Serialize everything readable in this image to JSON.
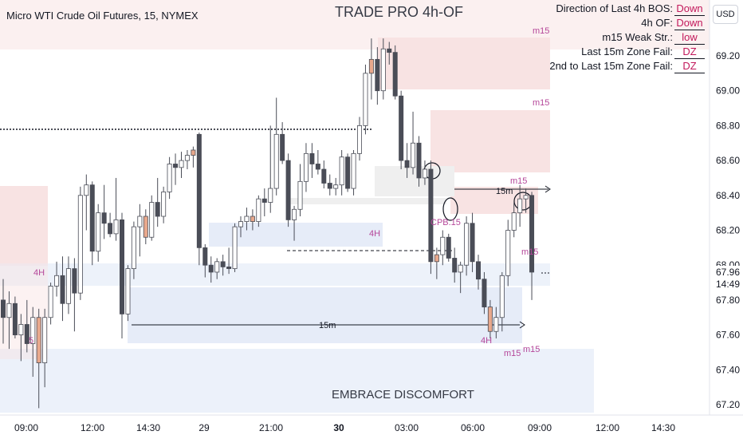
{
  "header": {
    "symbol": "Micro WTI Crude Oil Futures, 15, NYMEX",
    "title": "TRADE PRO 4h-OF",
    "currency": "USD",
    "footer_text": "EMBRACE DISCOMFORT"
  },
  "info_panel": [
    {
      "label": "Direction of Last 4h BOS:",
      "value": "Down"
    },
    {
      "label": "4h OF:",
      "value": "Down"
    },
    {
      "label": "m15 Weak Str.:",
      "value": "low"
    },
    {
      "label": "Last 15m Zone Fail:",
      "value": "DZ"
    },
    {
      "label": "2nd to Last 15m Zone Fail:",
      "value": "DZ"
    }
  ],
  "colors": {
    "bull_body": "#ffffff",
    "bear_body": "#4a4d57",
    "highlight_body": "#e8a88c",
    "wick": "#4a4d57",
    "supply_zone": "#f8e3e3",
    "demand_zone": "#e6ecf8",
    "neutral_zone": "#efefef",
    "label_color": "#b5479a"
  },
  "chart_data": {
    "type": "candlestick",
    "y_ticks": [
      "69.20",
      "69.00",
      "68.80",
      "68.60",
      "68.40",
      "68.20",
      "68.00",
      "67.80",
      "67.60",
      "67.40",
      "67.20"
    ],
    "x_ticks": [
      "09:00",
      "12:00",
      "14:30",
      "29",
      "21:00",
      "30",
      "03:00",
      "06:00",
      "09:00",
      "12:00",
      "14:30"
    ],
    "ylim": [
      67.18,
      69.44
    ],
    "last_price": "67.96",
    "countdown": "14:49",
    "current_price_label": "67.80",
    "zone_labels": [
      "m15",
      "m15",
      "m15",
      "m15",
      "m15",
      "m15",
      "4H",
      "4H",
      "4H",
      "15m",
      "15m",
      "CPB.15",
      "5"
    ],
    "candles": [
      {
        "o": 67.8,
        "h": 67.92,
        "l": 67.55,
        "c": 67.7
      },
      {
        "o": 67.7,
        "h": 67.85,
        "l": 67.52,
        "c": 67.78
      },
      {
        "o": 67.78,
        "h": 67.82,
        "l": 67.58,
        "c": 67.6
      },
      {
        "o": 67.6,
        "h": 67.72,
        "l": 67.45,
        "c": 67.66
      },
      {
        "o": 67.66,
        "h": 67.8,
        "l": 67.5,
        "c": 67.55
      },
      {
        "o": 67.55,
        "h": 67.76,
        "l": 67.36,
        "c": 67.7
      },
      {
        "o": 67.7,
        "h": 67.75,
        "l": 67.18,
        "c": 67.44
      },
      {
        "o": 67.44,
        "h": 67.75,
        "l": 67.3,
        "c": 67.7
      },
      {
        "o": 67.7,
        "h": 67.9,
        "l": 67.66,
        "c": 67.88
      },
      {
        "o": 67.88,
        "h": 68.02,
        "l": 67.82,
        "c": 67.94
      },
      {
        "o": 67.94,
        "h": 68.05,
        "l": 67.68,
        "c": 67.78
      },
      {
        "o": 67.78,
        "h": 68.05,
        "l": 67.72,
        "c": 67.98
      },
      {
        "o": 67.98,
        "h": 68.04,
        "l": 67.62,
        "c": 67.84
      },
      {
        "o": 67.84,
        "h": 68.45,
        "l": 67.8,
        "c": 68.4
      },
      {
        "o": 68.4,
        "h": 68.52,
        "l": 68.2,
        "c": 68.46
      },
      {
        "o": 68.46,
        "h": 68.48,
        "l": 68.0,
        "c": 68.08
      },
      {
        "o": 68.08,
        "h": 68.35,
        "l": 68.02,
        "c": 68.3
      },
      {
        "o": 68.3,
        "h": 68.46,
        "l": 68.15,
        "c": 68.24
      },
      {
        "o": 68.24,
        "h": 68.3,
        "l": 68.16,
        "c": 68.18
      },
      {
        "o": 68.18,
        "h": 68.5,
        "l": 68.14,
        "c": 68.26
      },
      {
        "o": 68.26,
        "h": 68.3,
        "l": 67.58,
        "c": 67.72
      },
      {
        "o": 67.72,
        "h": 68.0,
        "l": 67.68,
        "c": 67.98
      },
      {
        "o": 67.98,
        "h": 68.25,
        "l": 67.92,
        "c": 68.22
      },
      {
        "o": 68.22,
        "h": 68.35,
        "l": 68.05,
        "c": 68.28
      },
      {
        "o": 68.28,
        "h": 68.32,
        "l": 68.12,
        "c": 68.16
      },
      {
        "o": 68.16,
        "h": 68.4,
        "l": 68.14,
        "c": 68.36
      },
      {
        "o": 68.36,
        "h": 68.5,
        "l": 68.22,
        "c": 68.28
      },
      {
        "o": 68.28,
        "h": 68.45,
        "l": 68.24,
        "c": 68.42
      },
      {
        "o": 68.42,
        "h": 68.62,
        "l": 68.38,
        "c": 68.58
      },
      {
        "o": 68.58,
        "h": 68.64,
        "l": 68.46,
        "c": 68.56
      },
      {
        "o": 68.56,
        "h": 68.65,
        "l": 68.5,
        "c": 68.6
      },
      {
        "o": 68.6,
        "h": 68.66,
        "l": 68.55,
        "c": 68.63
      },
      {
        "o": 68.63,
        "h": 68.68,
        "l": 68.56,
        "c": 68.66
      },
      {
        "o": 68.75,
        "h": 68.76,
        "l": 68.0,
        "c": 68.1
      },
      {
        "o": 68.1,
        "h": 68.12,
        "l": 67.93,
        "c": 68.0
      },
      {
        "o": 68.0,
        "h": 68.05,
        "l": 67.9,
        "c": 67.96
      },
      {
        "o": 67.96,
        "h": 68.04,
        "l": 67.92,
        "c": 68.02
      },
      {
        "o": 68.02,
        "h": 68.06,
        "l": 67.94,
        "c": 67.99
      },
      {
        "o": 67.99,
        "h": 68.1,
        "l": 67.95,
        "c": 67.98
      },
      {
        "o": 67.98,
        "h": 68.24,
        "l": 67.96,
        "c": 68.22
      },
      {
        "o": 68.22,
        "h": 68.28,
        "l": 68.16,
        "c": 68.25
      },
      {
        "o": 68.25,
        "h": 68.33,
        "l": 68.2,
        "c": 68.28
      },
      {
        "o": 68.28,
        "h": 68.32,
        "l": 68.2,
        "c": 68.25
      },
      {
        "o": 68.25,
        "h": 68.4,
        "l": 68.22,
        "c": 68.38
      },
      {
        "o": 68.38,
        "h": 68.44,
        "l": 68.28,
        "c": 68.36
      },
      {
        "o": 68.36,
        "h": 68.8,
        "l": 68.3,
        "c": 68.44
      },
      {
        "o": 68.44,
        "h": 68.96,
        "l": 68.4,
        "c": 68.75
      },
      {
        "o": 68.75,
        "h": 68.82,
        "l": 68.58,
        "c": 68.6
      },
      {
        "o": 68.6,
        "h": 68.64,
        "l": 68.22,
        "c": 68.26
      },
      {
        "o": 68.26,
        "h": 68.34,
        "l": 68.14,
        "c": 68.32
      },
      {
        "o": 68.32,
        "h": 68.58,
        "l": 68.28,
        "c": 68.48
      },
      {
        "o": 68.48,
        "h": 68.7,
        "l": 68.42,
        "c": 68.64
      },
      {
        "o": 68.64,
        "h": 68.7,
        "l": 68.5,
        "c": 68.58
      },
      {
        "o": 68.58,
        "h": 68.66,
        "l": 68.52,
        "c": 68.55
      },
      {
        "o": 68.55,
        "h": 68.6,
        "l": 68.44,
        "c": 68.47
      },
      {
        "o": 68.47,
        "h": 68.52,
        "l": 68.4,
        "c": 68.44
      },
      {
        "o": 68.44,
        "h": 68.5,
        "l": 68.4,
        "c": 68.46
      },
      {
        "o": 68.46,
        "h": 68.66,
        "l": 68.4,
        "c": 68.62
      },
      {
        "o": 68.62,
        "h": 68.64,
        "l": 68.42,
        "c": 68.44
      },
      {
        "o": 68.44,
        "h": 68.66,
        "l": 68.4,
        "c": 68.64
      },
      {
        "o": 68.64,
        "h": 68.85,
        "l": 68.6,
        "c": 68.8
      },
      {
        "o": 68.8,
        "h": 69.15,
        "l": 68.75,
        "c": 69.1
      },
      {
        "o": 69.1,
        "h": 69.3,
        "l": 68.95,
        "c": 69.18
      },
      {
        "o": 69.18,
        "h": 69.25,
        "l": 68.92,
        "c": 69.0
      },
      {
        "o": 69.0,
        "h": 69.3,
        "l": 68.95,
        "c": 69.24
      },
      {
        "o": 69.24,
        "h": 69.28,
        "l": 69.15,
        "c": 69.22
      },
      {
        "o": 69.22,
        "h": 69.26,
        "l": 68.95,
        "c": 68.97
      },
      {
        "o": 68.97,
        "h": 69.0,
        "l": 68.55,
        "c": 68.6
      },
      {
        "o": 68.6,
        "h": 68.7,
        "l": 68.5,
        "c": 68.56
      },
      {
        "o": 68.56,
        "h": 68.88,
        "l": 68.52,
        "c": 68.7
      },
      {
        "o": 68.7,
        "h": 68.74,
        "l": 68.45,
        "c": 68.5
      },
      {
        "o": 68.5,
        "h": 68.6,
        "l": 68.46,
        "c": 68.55
      },
      {
        "o": 68.55,
        "h": 68.6,
        "l": 67.95,
        "c": 68.02
      },
      {
        "o": 68.02,
        "h": 68.1,
        "l": 67.92,
        "c": 68.06
      },
      {
        "o": 68.06,
        "h": 68.2,
        "l": 68.0,
        "c": 68.16
      },
      {
        "o": 68.16,
        "h": 68.18,
        "l": 68.02,
        "c": 68.04
      },
      {
        "o": 68.04,
        "h": 68.1,
        "l": 67.9,
        "c": 67.96
      },
      {
        "o": 67.96,
        "h": 68.02,
        "l": 67.84,
        "c": 68.0
      },
      {
        "o": 68.0,
        "h": 68.28,
        "l": 67.94,
        "c": 68.24
      },
      {
        "o": 68.24,
        "h": 68.3,
        "l": 67.96,
        "c": 68.02
      },
      {
        "o": 68.02,
        "h": 68.06,
        "l": 67.86,
        "c": 67.92
      },
      {
        "o": 67.92,
        "h": 67.96,
        "l": 67.72,
        "c": 67.76
      },
      {
        "o": 67.76,
        "h": 67.8,
        "l": 67.58,
        "c": 67.62
      },
      {
        "o": 67.62,
        "h": 67.76,
        "l": 67.58,
        "c": 67.7
      },
      {
        "o": 67.7,
        "h": 67.96,
        "l": 67.62,
        "c": 67.94
      },
      {
        "o": 67.94,
        "h": 68.26,
        "l": 67.88,
        "c": 68.2
      },
      {
        "o": 68.2,
        "h": 68.36,
        "l": 68.16,
        "c": 68.3
      },
      {
        "o": 68.3,
        "h": 68.46,
        "l": 68.22,
        "c": 68.38
      },
      {
        "o": 68.38,
        "h": 68.44,
        "l": 68.3,
        "c": 68.4
      },
      {
        "o": 68.4,
        "h": 68.42,
        "l": 67.8,
        "c": 67.96
      }
    ]
  }
}
